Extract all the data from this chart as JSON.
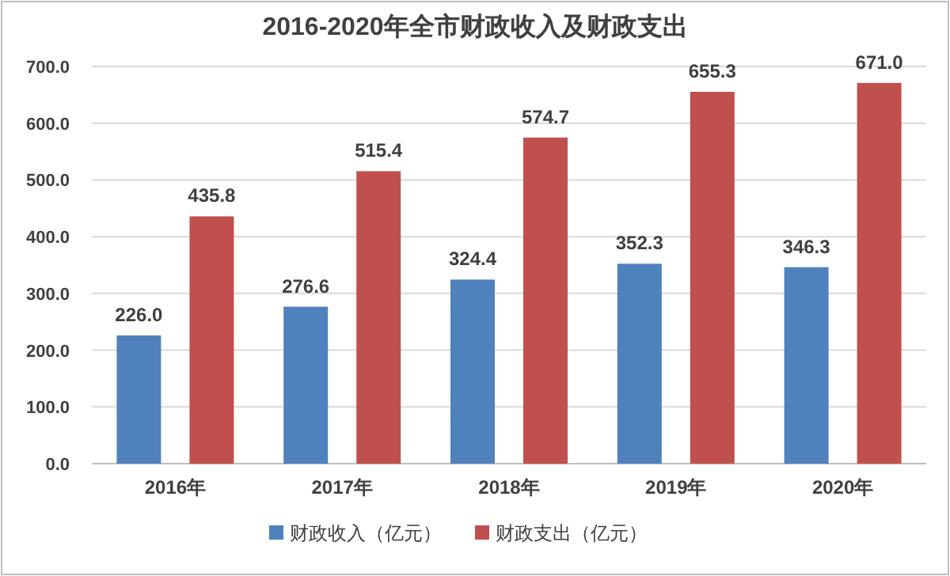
{
  "chart_data": {
    "type": "bar",
    "title": "2016-2020年全市财政收入及财政支出",
    "categories": [
      "2016年",
      "2017年",
      "2018年",
      "2019年",
      "2020年"
    ],
    "series": [
      {
        "name": "财政收入（亿元）",
        "color": "#4f81bd",
        "values": [
          226.0,
          276.6,
          324.4,
          352.3,
          346.3
        ],
        "value_labels": [
          "226.0",
          "276.6",
          "324.4",
          "352.3",
          "346.3"
        ]
      },
      {
        "name": "财政支出（亿元）",
        "color": "#c0504d",
        "values": [
          435.8,
          515.4,
          574.7,
          655.3,
          671.0
        ],
        "value_labels": [
          "435.8",
          "515.4",
          "574.7",
          "655.3",
          "671.0"
        ]
      }
    ],
    "ylim": [
      0,
      700
    ],
    "yticks": [
      {
        "value": 0,
        "label": "0.0"
      },
      {
        "value": 100,
        "label": "100.0"
      },
      {
        "value": 200,
        "label": "200.0"
      },
      {
        "value": 300,
        "label": "300.0"
      },
      {
        "value": 400,
        "label": "400.0"
      },
      {
        "value": 500,
        "label": "500.0"
      },
      {
        "value": 600,
        "label": "600.0"
      },
      {
        "value": 700,
        "label": "700.0"
      }
    ],
    "grid": "y",
    "legend": "bottom"
  }
}
